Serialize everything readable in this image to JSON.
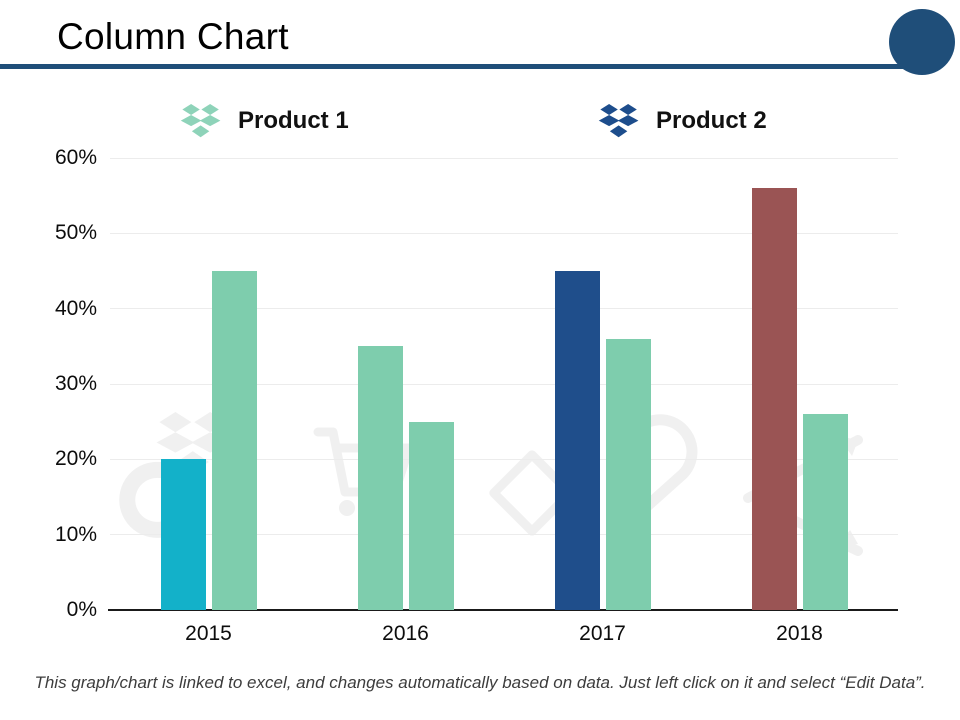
{
  "slide": {
    "title": "Column Chart",
    "caption": "This graph/chart is linked to excel, and changes automatically based on data. Just left click on it and select “Edit Data”."
  },
  "theme": {
    "accent": "#1f4e79",
    "axis_color": "#1a1a1a",
    "gridline_color": "#ececec"
  },
  "legend": {
    "items": [
      {
        "label": "Product 1",
        "icon": "dropbox-icon",
        "color": "#8ed3b9"
      },
      {
        "label": "Product 2",
        "icon": "dropbox-icon",
        "color": "#1d4d8c"
      }
    ]
  },
  "chart_data": {
    "type": "bar",
    "title": "",
    "xlabel": "",
    "ylabel": "",
    "categories": [
      "2015",
      "2016",
      "2017",
      "2018"
    ],
    "series": [
      {
        "name": "Product 1",
        "values": [
          20,
          35,
          45,
          56
        ],
        "colors": [
          "#13b1c9",
          "#7ecdad",
          "#1f4e8b",
          "#9a5454"
        ]
      },
      {
        "name": "Product 2",
        "values": [
          45,
          25,
          36,
          26
        ],
        "colors": [
          "#7ecdad",
          "#7ecdad",
          "#7ecdad",
          "#7ecdad"
        ]
      }
    ],
    "yticks": [
      "0%",
      "10%",
      "20%",
      "30%",
      "40%",
      "50%",
      "60%"
    ],
    "ylim": [
      0,
      60
    ],
    "grid": true,
    "legend_position": "top"
  }
}
